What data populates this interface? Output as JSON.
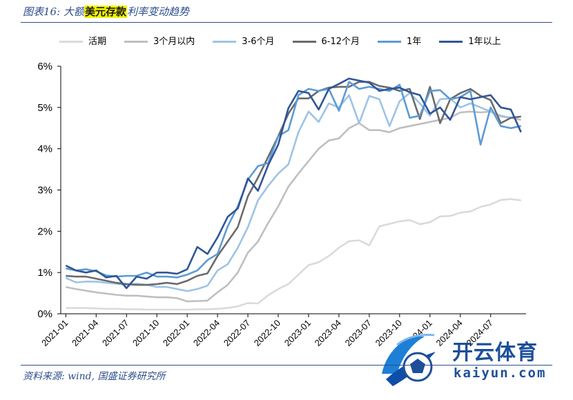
{
  "header": {
    "figure_label": "图表16:",
    "title_pre": "大额",
    "title_highlight": "美元存款",
    "title_post": "利率变动趋势"
  },
  "footer": {
    "source": "资料来源: wind, 国盛证券研究所"
  },
  "watermark": {
    "brand": "开云体育",
    "url": "kaiyun.com"
  },
  "colors": {
    "rule": "#2d4d8c",
    "highlight": "#f4f200"
  },
  "chart_data": {
    "type": "line",
    "title": "",
    "xlabel": "",
    "ylabel": "",
    "ylim": [
      0,
      6
    ],
    "yticks": [
      "0%",
      "1%",
      "2%",
      "3%",
      "4%",
      "5%",
      "6%"
    ],
    "x_tick_labels": [
      "2021-01",
      "2021-04",
      "2021-07",
      "2021-10",
      "2022-01",
      "2022-04",
      "2022-07",
      "2022-10",
      "2023-01",
      "2023-04",
      "2023-07",
      "2023-10",
      "2024-01",
      "2024-04",
      "2024-07"
    ],
    "x_tick_step": 3,
    "legend_position": "top",
    "grid": false,
    "x": [
      "2021-01",
      "2021-02",
      "2021-03",
      "2021-04",
      "2021-05",
      "2021-06",
      "2021-07",
      "2021-08",
      "2021-09",
      "2021-10",
      "2021-11",
      "2021-12",
      "2022-01",
      "2022-02",
      "2022-03",
      "2022-04",
      "2022-05",
      "2022-06",
      "2022-07",
      "2022-08",
      "2022-09",
      "2022-10",
      "2022-11",
      "2022-12",
      "2023-01",
      "2023-02",
      "2023-03",
      "2023-04",
      "2023-05",
      "2023-06",
      "2023-07",
      "2023-08",
      "2023-09",
      "2023-10",
      "2023-11",
      "2023-12",
      "2024-01",
      "2024-02",
      "2024-03",
      "2024-04",
      "2024-05",
      "2024-06",
      "2024-07",
      "2024-08",
      "2024-09",
      "2024-10"
    ],
    "series": [
      {
        "name": "活期",
        "color": "#dadada",
        "values": [
          0.14,
          0.14,
          0.14,
          0.13,
          0.12,
          0.12,
          0.11,
          0.11,
          0.1,
          0.1,
          0.1,
          0.1,
          0.1,
          0.11,
          0.11,
          0.12,
          0.14,
          0.18,
          0.26,
          0.25,
          0.45,
          0.6,
          0.72,
          0.95,
          1.18,
          1.25,
          1.4,
          1.6,
          1.76,
          1.78,
          1.66,
          2.12,
          2.18,
          2.24,
          2.27,
          2.17,
          2.22,
          2.36,
          2.37,
          2.45,
          2.48,
          2.59,
          2.65,
          2.76,
          2.78,
          2.75
        ]
      },
      {
        "name": "3个月以内",
        "color": "#bfbfbf",
        "values": [
          0.65,
          0.6,
          0.56,
          0.52,
          0.49,
          0.46,
          0.44,
          0.44,
          0.42,
          0.4,
          0.4,
          0.38,
          0.3,
          0.31,
          0.32,
          0.52,
          0.7,
          1.0,
          1.48,
          1.75,
          2.2,
          2.6,
          3.08,
          3.4,
          3.7,
          4.0,
          4.2,
          4.25,
          4.5,
          4.62,
          4.45,
          4.45,
          4.4,
          4.5,
          4.55,
          4.6,
          4.65,
          4.7,
          4.75,
          4.88,
          4.9,
          4.88,
          4.9,
          4.78,
          4.75,
          4.7
        ]
      },
      {
        "name": "3-6个月",
        "color": "#9dc3e6",
        "values": [
          0.87,
          0.76,
          0.78,
          0.78,
          0.75,
          0.73,
          0.7,
          0.73,
          0.7,
          0.65,
          0.65,
          0.6,
          0.55,
          0.6,
          0.68,
          1.05,
          1.2,
          1.6,
          2.1,
          2.75,
          3.1,
          3.4,
          3.62,
          4.4,
          4.9,
          4.65,
          5.1,
          5.0,
          5.3,
          4.62,
          5.28,
          5.2,
          4.55,
          5.15,
          5.35,
          5.1,
          4.8,
          5.2,
          5.22,
          5.0,
          5.1,
          5.0,
          4.9,
          4.8,
          4.75,
          4.78
        ]
      },
      {
        "name": "6-12个月",
        "color": "#6a6a6a",
        "values": [
          0.92,
          0.9,
          0.9,
          0.85,
          0.8,
          0.75,
          0.72,
          0.7,
          0.7,
          0.72,
          0.75,
          0.72,
          0.8,
          0.92,
          0.98,
          1.4,
          1.75,
          2.1,
          2.85,
          3.3,
          3.8,
          4.3,
          4.85,
          5.22,
          5.22,
          5.4,
          5.48,
          5.5,
          5.5,
          5.62,
          5.62,
          5.52,
          5.48,
          5.4,
          5.45,
          4.72,
          5.5,
          4.62,
          5.2,
          5.35,
          5.45,
          5.28,
          5.18,
          4.62,
          4.75,
          4.78
        ]
      },
      {
        "name": "1年",
        "color": "#5b9bd5",
        "values": [
          1.1,
          1.05,
          1.08,
          1.03,
          0.93,
          0.9,
          0.92,
          0.92,
          1.0,
          0.9,
          0.9,
          0.88,
          0.95,
          1.05,
          1.3,
          1.45,
          2.12,
          2.6,
          3.25,
          3.58,
          3.65,
          4.3,
          4.45,
          5.3,
          5.45,
          5.4,
          5.45,
          4.92,
          5.62,
          5.45,
          5.5,
          5.45,
          5.4,
          5.55,
          4.75,
          4.8,
          5.4,
          5.42,
          5.2,
          5.25,
          5.4,
          4.1,
          5.0,
          4.55,
          4.5,
          4.55
        ]
      },
      {
        "name": "1年以上",
        "color": "#2f5597",
        "values": [
          1.17,
          1.05,
          1.0,
          1.05,
          0.88,
          0.92,
          0.62,
          0.9,
          0.85,
          1.0,
          1.0,
          0.97,
          1.08,
          1.62,
          1.45,
          1.85,
          2.35,
          2.55,
          3.28,
          2.98,
          3.6,
          4.1,
          4.98,
          5.4,
          5.35,
          4.95,
          5.45,
          5.57,
          5.7,
          5.65,
          5.6,
          5.4,
          5.45,
          5.48,
          5.37,
          5.3,
          4.85,
          5.0,
          4.7,
          5.25,
          5.2,
          5.25,
          5.3,
          5.0,
          4.95,
          4.4
        ]
      }
    ]
  }
}
